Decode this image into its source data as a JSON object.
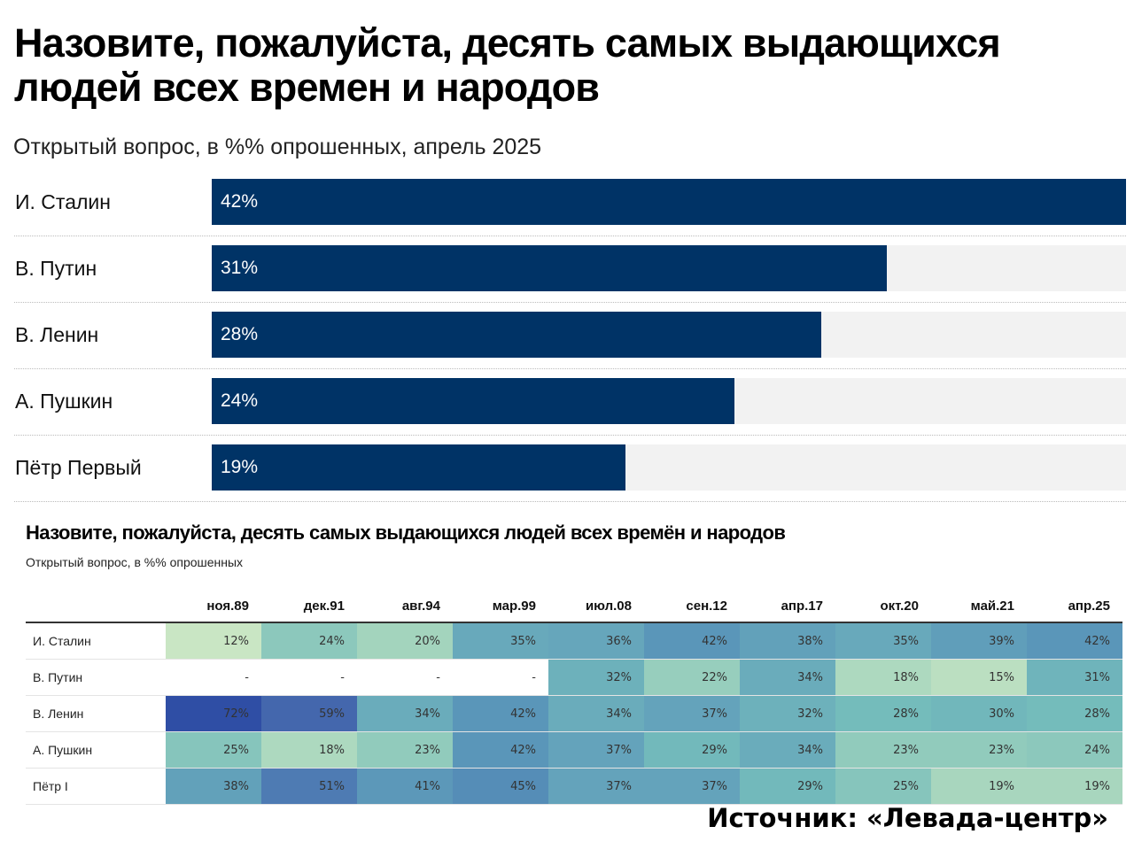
{
  "chart_data": [
    {
      "type": "bar",
      "title": "Назовите, пожалуйста, десять самых выдающихся людей всех времен и народов",
      "subtitle": "Открытый вопрос, в %% опрошенных, апрель 2025",
      "categories": [
        "И. Сталин",
        "В. Путин",
        "В. Ленин",
        "А. Пушкин",
        "Пётр Первый"
      ],
      "values": [
        42,
        31,
        28,
        24,
        19
      ],
      "value_labels": [
        "42%",
        "31%",
        "28%",
        "24%",
        "19%"
      ],
      "xlim": [
        0,
        42
      ],
      "bar_color": "#003366",
      "track_color": "#f2f2f2",
      "grid": false
    },
    {
      "type": "heatmap",
      "title": "Назовите, пожалуйста, десять самых выдающихся людей всех времён и народов",
      "subtitle": "Открытый вопрос, в %% опрошенных",
      "columns": [
        "ноя.89",
        "дек.91",
        "авг.94",
        "мар.99",
        "июл.08",
        "сен.12",
        "апр.17",
        "окт.20",
        "май.21",
        "апр.25"
      ],
      "rows": [
        {
          "label": "И. Сталин",
          "cells": [
            "12%",
            "24%",
            "20%",
            "35%",
            "36%",
            "42%",
            "38%",
            "35%",
            "39%",
            "42%"
          ]
        },
        {
          "label": "В. Путин",
          "cells": [
            "-",
            "-",
            "-",
            "-",
            "32%",
            "22%",
            "34%",
            "18%",
            "15%",
            "31%"
          ]
        },
        {
          "label": "В. Ленин",
          "cells": [
            "72%",
            "59%",
            "34%",
            "42%",
            "34%",
            "37%",
            "32%",
            "28%",
            "30%",
            "28%"
          ]
        },
        {
          "label": "А. Пушкин",
          "cells": [
            "25%",
            "18%",
            "23%",
            "42%",
            "37%",
            "29%",
            "34%",
            "23%",
            "23%",
            "24%"
          ]
        },
        {
          "label": "Пётр I",
          "cells": [
            "38%",
            "51%",
            "41%",
            "45%",
            "37%",
            "37%",
            "29%",
            "25%",
            "19%",
            "19%"
          ]
        }
      ],
      "color_scale": [
        "#c9e6c4",
        "#a3d4bd",
        "#74bcbb",
        "#66a6bb",
        "#5690b8",
        "#4a6fb0",
        "#2f4ea5"
      ]
    }
  ],
  "source": "Источник: «Левада-центр»"
}
